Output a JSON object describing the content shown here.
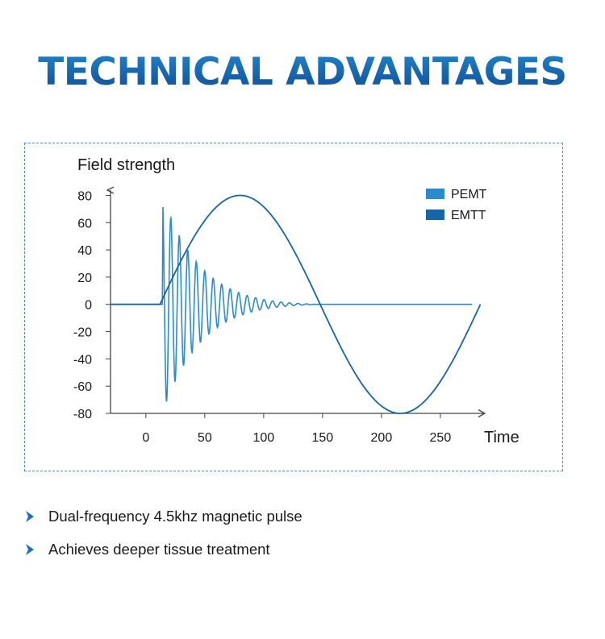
{
  "page": {
    "title": "TECHNICAL ADVANTAGES",
    "bullets": [
      "Dual-frequency 4.5khz magnetic pulse",
      "Achieves deeper tissue treatment"
    ]
  },
  "colors": {
    "title_gradient_top": "#1f86cc",
    "title_gradient_bottom": "#0f4e94",
    "pemt": "#2a8ad2",
    "emtt": "#1565a8",
    "axis": "#444444",
    "bullet_arrow": "#1a6fb8"
  },
  "chart_data": {
    "type": "line",
    "title": "",
    "xlabel": "Time",
    "ylabel": "Field strength",
    "xlim": [
      -30,
      285
    ],
    "ylim": [
      -80,
      85
    ],
    "x_ticks": [
      0,
      50,
      100,
      150,
      200,
      250
    ],
    "y_ticks": [
      80,
      60,
      40,
      20,
      0,
      -20,
      -40,
      -60,
      -80
    ],
    "x_tick_labels": [
      "0",
      "50",
      "100",
      "150",
      "200",
      "250"
    ],
    "y_tick_labels": [
      "80",
      "60",
      "40",
      "20",
      "0",
      "-20",
      "-40",
      "-60",
      "-80"
    ],
    "legend_position": "top-right",
    "grid": false,
    "series": [
      {
        "name": "PEMT",
        "color": "#2a8ad2",
        "description_points": {
          "x": [
            -30,
            14,
            14.5,
            17.5,
            22,
            25,
            29,
            32,
            36,
            39,
            43,
            47,
            51,
            54,
            58,
            62,
            66,
            70,
            74,
            78,
            83,
            88,
            93,
            98,
            103,
            108,
            113,
            118,
            123,
            127,
            132,
            136,
            141,
            143,
            285
          ],
          "y": [
            0,
            0,
            80,
            -70,
            65,
            -57,
            55,
            -47,
            45,
            -38,
            38,
            -32,
            32,
            -27,
            26,
            -22,
            21,
            -18,
            17,
            -14,
            13,
            -11,
            10,
            -8,
            8,
            -6,
            6,
            -5,
            5,
            -3,
            3,
            -2,
            2,
            0,
            0
          ]
        }
      },
      {
        "name": "EMTT",
        "color": "#1565a8",
        "description_points": {
          "x": [
            -30,
            12,
            50,
            84,
            118,
            152,
            186,
            220,
            252,
            275,
            284
          ],
          "y": [
            0,
            0,
            56,
            80,
            56,
            0,
            -56,
            -80,
            -56,
            -23,
            0
          ]
        }
      }
    ]
  }
}
